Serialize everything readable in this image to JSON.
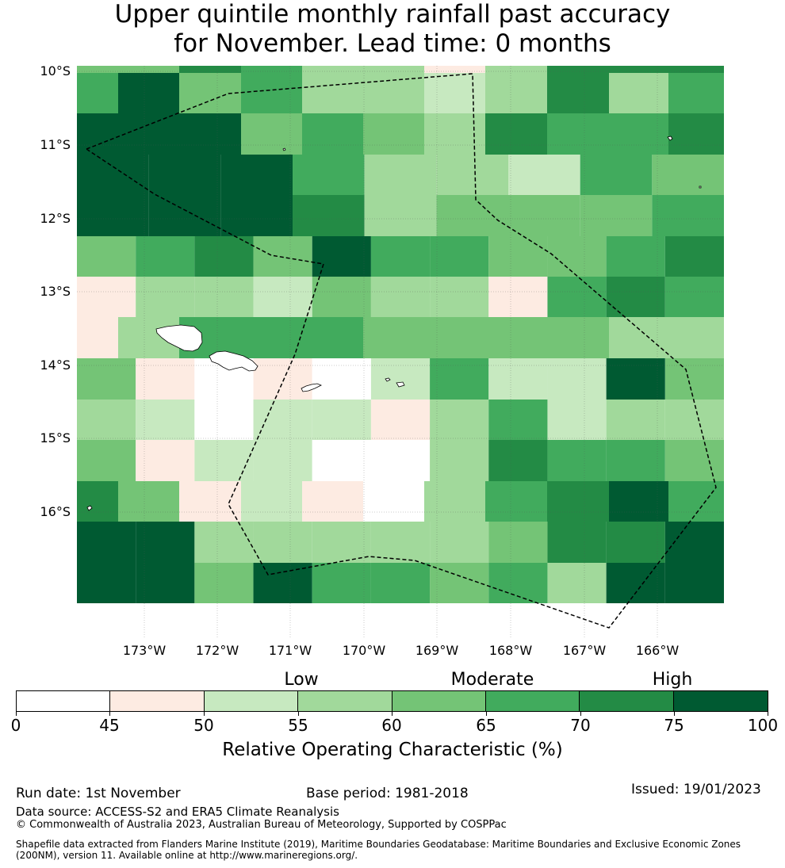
{
  "title": {
    "line1": "Upper quintile monthly rainfall past accuracy",
    "line2": "for November. Lead time: 0 months"
  },
  "map": {
    "lat_labels": [
      "10°S",
      "11°S",
      "12°S",
      "13°S",
      "14°S",
      "15°S",
      "16°S"
    ],
    "lon_labels": [
      "173°W",
      "172°W",
      "171°W",
      "170°W",
      "169°W",
      "168°W",
      "167°W",
      "166°W"
    ],
    "colors": {
      "0": "#ffffff",
      "1": "#fdebe2",
      "2": "#c7e9c0",
      "3": "#a1d99b",
      "4": "#74c476",
      "5": "#41ab5d",
      "6": "#238b45",
      "7": "#005a32"
    },
    "grid_rows": [
      [
        4,
        6,
        5,
        3,
        1,
        3,
        6,
        6
      ],
      [
        5,
        7,
        4,
        5,
        3,
        2,
        3,
        6,
        3,
        5
      ],
      [
        7,
        7,
        4,
        5,
        4,
        3,
        6,
        5,
        5,
        6
      ],
      [
        7,
        7,
        7,
        5,
        3,
        3,
        2,
        5,
        4
      ],
      [
        7,
        7,
        7,
        6,
        3,
        4,
        4,
        4,
        5
      ],
      [
        4,
        5,
        6,
        4,
        7,
        5,
        5,
        4,
        4,
        5,
        6
      ],
      [
        1,
        3,
        3,
        2,
        4,
        3,
        3,
        1,
        5,
        6,
        5
      ],
      [
        1,
        3,
        5,
        5,
        4,
        4,
        4,
        3,
        6,
        7
      ],
      [
        4,
        1,
        0,
        1,
        0,
        2,
        5,
        2,
        2,
        7,
        4
      ],
      [
        3,
        2,
        0,
        2,
        2,
        1,
        3,
        5,
        2,
        3,
        3
      ],
      [
        4,
        1,
        2,
        2,
        0,
        0,
        3,
        6,
        5,
        5,
        4
      ],
      [
        6,
        4,
        1,
        2,
        1,
        0,
        3,
        5,
        6,
        7,
        5
      ],
      [
        7,
        7,
        3,
        3,
        3,
        3,
        3,
        4,
        6,
        6,
        7
      ],
      [
        7,
        7,
        4,
        7,
        5,
        5,
        4,
        5,
        3,
        7,
        7
      ]
    ]
  },
  "colorbar": {
    "category_labels": [
      "Low",
      "Moderate",
      "High"
    ],
    "segments": [
      {
        "from": 0,
        "to": 45,
        "color": "#ffffff"
      },
      {
        "from": 45,
        "to": 50,
        "color": "#fdebe2"
      },
      {
        "from": 50,
        "to": 55,
        "color": "#c7e9c0"
      },
      {
        "from": 55,
        "to": 60,
        "color": "#a1d99b"
      },
      {
        "from": 60,
        "to": 65,
        "color": "#74c476"
      },
      {
        "from": 65,
        "to": 70,
        "color": "#41ab5d"
      },
      {
        "from": 70,
        "to": 75,
        "color": "#238b45"
      },
      {
        "from": 75,
        "to": 100,
        "color": "#005a32"
      }
    ],
    "ticks": [
      "0",
      "45",
      "50",
      "55",
      "60",
      "65",
      "70",
      "75",
      "100"
    ],
    "title": "Relative Operating Characteristic (%)"
  },
  "footer": {
    "run_date": "Run date: 1st November",
    "base_period": "Base period: 1981-2018",
    "issued": "Issued: 19/01/2023",
    "data_source": "Data source: ACCESS-S2 and ERA5 Climate Reanalysis",
    "copyright": "© Commonwealth of Australia 2023, Australian Bureau of Meteorology, Supported by COSPPac",
    "shapefile_line1": "Shapefile data extracted from Flanders Marine Institute (2019), Maritime Boundaries Geodatabase: Maritime Boundaries and Exclusive Economic Zones",
    "shapefile_line2": "(200NM), version 11. Available online at http://www.marineregions.org/."
  }
}
